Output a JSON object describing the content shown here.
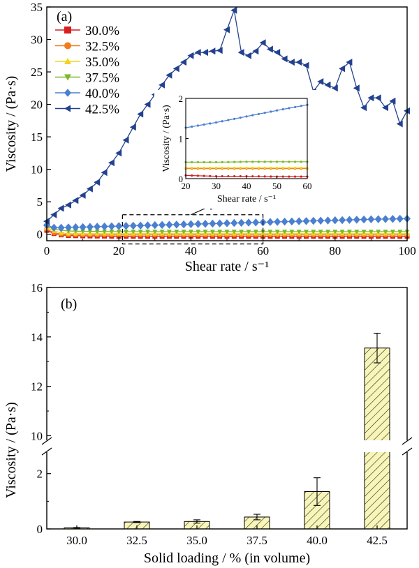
{
  "chart_data": [
    {
      "panel": "(a)",
      "type": "line",
      "xlabel": "Shear rate / s⁻¹",
      "ylabel": "Viscosity / (Pa·s)",
      "xlim": [
        0,
        100
      ],
      "ylim": [
        -1,
        35
      ],
      "xticks": [
        "0",
        "20",
        "40",
        "60",
        "80",
        "100"
      ],
      "yticks": [
        "0",
        "5",
        "10",
        "15",
        "20",
        "25",
        "30",
        "35"
      ],
      "legend_position": "top-left",
      "series": [
        {
          "name": "30.0%",
          "color": "#d81e1e",
          "marker": "square",
          "x": [
            0,
            2,
            4,
            6,
            10,
            20,
            40,
            60,
            80,
            100
          ],
          "y": [
            0.6,
            0.1,
            -0.1,
            -0.2,
            -0.25,
            -0.3,
            -0.3,
            -0.3,
            -0.3,
            -0.3
          ]
        },
        {
          "name": "32.5%",
          "color": "#ef7d1f",
          "marker": "circle",
          "x": [
            0,
            2,
            4,
            6,
            10,
            20,
            40,
            60,
            80,
            100
          ],
          "y": [
            0.8,
            0.2,
            0.0,
            -0.05,
            -0.1,
            -0.1,
            -0.1,
            -0.1,
            -0.1,
            -0.1
          ]
        },
        {
          "name": "35.0%",
          "color": "#f2d518",
          "marker": "triangle-up",
          "x": [
            0,
            2,
            4,
            6,
            10,
            20,
            40,
            60,
            80,
            100
          ],
          "y": [
            1.0,
            0.5,
            0.2,
            0.1,
            0.1,
            0.1,
            0.1,
            0.1,
            0.1,
            0.1
          ]
        },
        {
          "name": "37.5%",
          "color": "#7ab82a",
          "marker": "triangle-down",
          "x": [
            0,
            2,
            4,
            6,
            10,
            20,
            40,
            60,
            80,
            100
          ],
          "y": [
            1.2,
            0.8,
            0.6,
            0.5,
            0.45,
            0.4,
            0.4,
            0.4,
            0.4,
            0.4
          ]
        },
        {
          "name": "40.0%",
          "color": "#4a7fd1",
          "marker": "diamond",
          "x": [
            0,
            2,
            4,
            6,
            10,
            20,
            30,
            40,
            50,
            60,
            70,
            80,
            90,
            100
          ],
          "y": [
            1.4,
            1.0,
            1.0,
            1.05,
            1.1,
            1.25,
            1.4,
            1.55,
            1.7,
            1.85,
            2.0,
            2.15,
            2.3,
            2.4
          ]
        },
        {
          "name": "42.5%",
          "color": "#23418f",
          "marker": "triangle-left",
          "x": [
            0,
            2,
            4,
            6,
            8,
            10,
            12,
            14,
            16,
            18,
            20,
            22,
            24,
            26,
            28,
            30,
            32,
            34,
            36,
            38,
            40,
            42,
            44,
            46,
            48,
            50,
            52,
            54,
            56,
            58,
            60,
            62,
            64,
            66,
            68,
            70,
            72,
            74,
            76,
            78,
            80,
            82,
            84,
            86,
            88,
            90,
            92,
            94,
            96,
            98,
            100
          ],
          "y": [
            2,
            3,
            4,
            4.5,
            5.2,
            6,
            7,
            8,
            9.5,
            11,
            12.5,
            14.5,
            16.5,
            18.5,
            20,
            21.5,
            23,
            24.5,
            25.5,
            26.5,
            27.5,
            28,
            28,
            28.2,
            28.3,
            31.5,
            34.5,
            28,
            27.5,
            28.2,
            29.5,
            28.5,
            28,
            27,
            26.5,
            26.5,
            26,
            22,
            23.5,
            23,
            22.5,
            25.5,
            26.5,
            22.5,
            19.5,
            21,
            21,
            19.5,
            20.5,
            17,
            19
          ]
        }
      ],
      "highlight_box": {
        "x": [
          21,
          60
        ],
        "y": [
          -1.5,
          3
        ]
      }
    },
    {
      "panel": "inset",
      "type": "line",
      "xlabel": "Shear rate / s⁻¹",
      "ylabel": "Viscosity / (Pa·s)",
      "xlim": [
        20,
        60
      ],
      "ylim": [
        0,
        2
      ],
      "xticks": [
        "20",
        "30",
        "40",
        "50",
        "60"
      ],
      "yticks": [
        "0",
        "1",
        "2"
      ],
      "series": [
        {
          "color": "#d81e1e",
          "x": [
            20,
            30,
            40,
            50,
            60
          ],
          "y": [
            0.08,
            0.06,
            0.06,
            0.05,
            0.05
          ]
        },
        {
          "color": "#ef7d1f",
          "x": [
            20,
            30,
            40,
            50,
            60
          ],
          "y": [
            0.25,
            0.25,
            0.25,
            0.25,
            0.25
          ]
        },
        {
          "color": "#f2d518",
          "x": [
            20,
            30,
            40,
            50,
            60
          ],
          "y": [
            0.27,
            0.27,
            0.27,
            0.27,
            0.27
          ]
        },
        {
          "color": "#7ab82a",
          "x": [
            20,
            30,
            40,
            50,
            60
          ],
          "y": [
            0.41,
            0.41,
            0.42,
            0.42,
            0.42
          ]
        },
        {
          "color": "#4a7fd1",
          "x": [
            20,
            30,
            40,
            50,
            60
          ],
          "y": [
            1.27,
            1.4,
            1.55,
            1.7,
            1.84
          ]
        }
      ]
    },
    {
      "panel": "(b)",
      "type": "bar",
      "xlabel": "Solid loading / % (in volume)",
      "ylabel": "Viscosity / (Pa·s)",
      "categories": [
        "30.0",
        "32.5",
        "35.0",
        "37.5",
        "40.0",
        "42.5"
      ],
      "values": [
        0.04,
        0.25,
        0.27,
        0.43,
        1.35,
        13.55
      ],
      "errors": [
        0.01,
        0.02,
        0.06,
        0.1,
        0.5,
        0.6
      ],
      "bar_color": "#f7f5b8",
      "hatch_color": "#1a1a1a",
      "axis_break": {
        "lower": [
          0,
          2.7
        ],
        "upper": [
          9.9,
          16
        ]
      },
      "yticks_lower": [
        "0",
        "2"
      ],
      "yticks_upper": [
        "10",
        "12",
        "14",
        "16"
      ]
    }
  ]
}
